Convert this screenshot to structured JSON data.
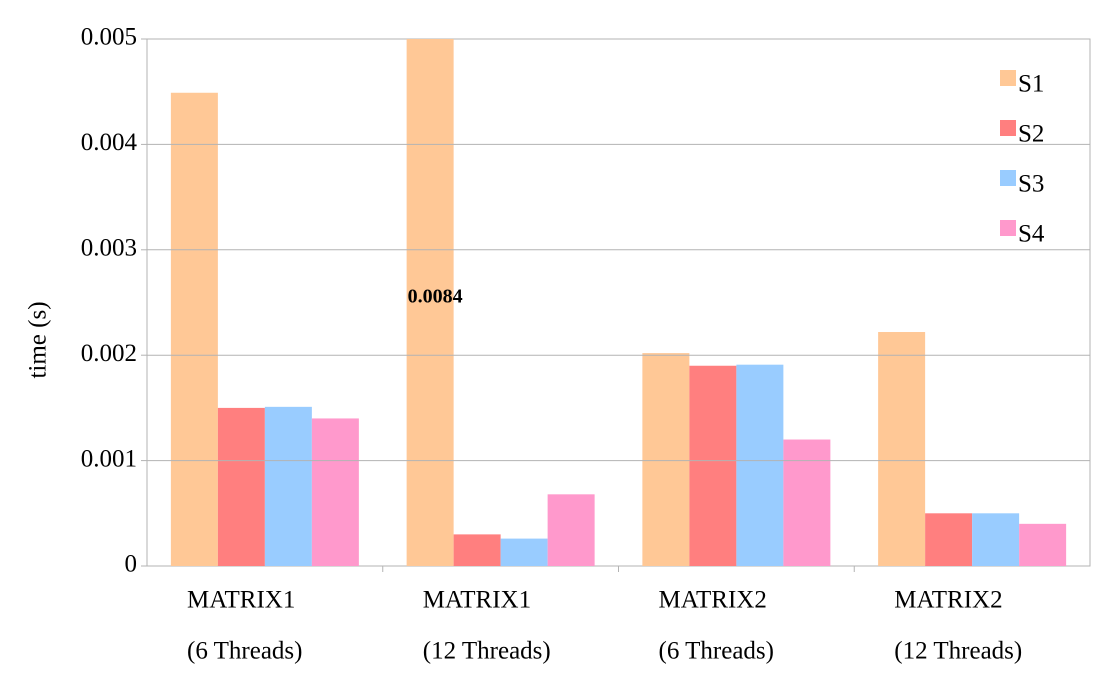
{
  "chart_data": {
    "type": "bar",
    "y_label": "time (s)",
    "categories": [
      [
        "MATRIX1",
        "(6 Threads)"
      ],
      [
        "MATRIX1",
        "(12 Threads)"
      ],
      [
        "MATRIX2",
        "(6 Threads)"
      ],
      [
        "MATRIX2",
        "(12 Threads)"
      ]
    ],
    "series": [
      {
        "name": "S1",
        "color": "#ffc896",
        "values": [
          0.00449,
          0.0084,
          0.00202,
          0.00222
        ],
        "value_labels": [
          null,
          "0.0084",
          null,
          null
        ]
      },
      {
        "name": "S2",
        "color": "#ff7f7f",
        "values": [
          0.0015,
          0.0003,
          0.0019,
          0.0005
        ]
      },
      {
        "name": "S3",
        "color": "#99ccff",
        "values": [
          0.00151,
          0.00026,
          0.00191,
          0.0005
        ]
      },
      {
        "name": "S4",
        "color": "#ff99cc",
        "values": [
          0.0014,
          0.00068,
          0.0012,
          0.0004
        ]
      }
    ],
    "ylim": [
      0,
      0.005
    ],
    "yticks": [
      0,
      0.001,
      0.002,
      0.003,
      0.004,
      0.005
    ],
    "grid": true,
    "legend": "top-right"
  }
}
